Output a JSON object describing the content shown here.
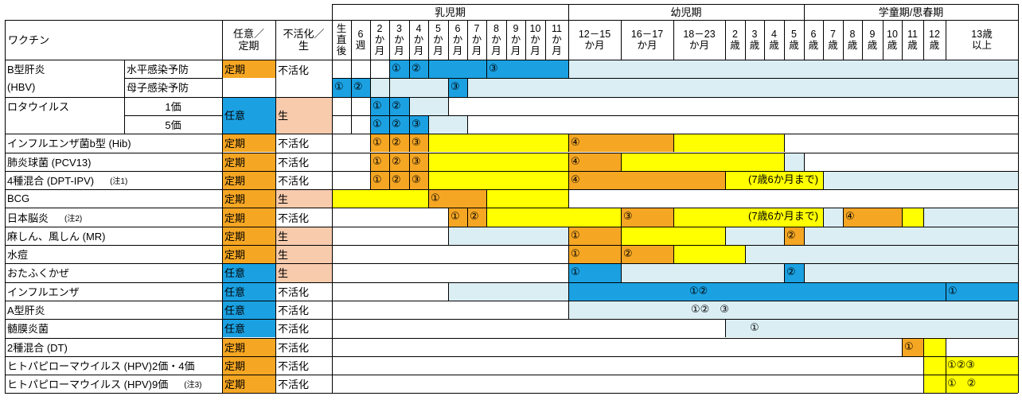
{
  "colors": {
    "orange": "#F5A623",
    "blue": "#1BA1E2",
    "peach": "#F8CBAD",
    "yellow": "#FFFF00",
    "lightblue": "#DAEEF3",
    "darkorange": "#F0A500"
  },
  "header": {
    "vaccine_col": "ワクチン",
    "type_col": "任意／\n定期",
    "kind_col": "不活化／\n生",
    "periods": [
      "乳児期",
      "幼児期",
      "学童期/思春期"
    ],
    "ages": [
      "生\n直\n後",
      "6\n週",
      "2\nか\n月",
      "3\nか\n月",
      "4\nか\n月",
      "5\nか\n月",
      "6\nか\n月",
      "7\nか\n月",
      "8\nか\n月",
      "9\nか\n月",
      "10\nか\n月",
      "11\nか\n月",
      "12－15\nか月",
      "16－17\nか月",
      "18－23\nか月",
      "2\n歳",
      "3\n歳",
      "4\n歳",
      "5\n歳",
      "6\n歳",
      "7\n歳",
      "8\n歳",
      "9\n歳",
      "10\n歳",
      "11\n歳",
      "12\n歳",
      "13歳\n以上"
    ]
  },
  "rows": [
    {
      "name": "B型肝炎",
      "sub": "水平感染予防",
      "type": "定期",
      "kind": "不活化"
    },
    {
      "name": "(HBV)",
      "sub": "母子感染予防",
      "type": "",
      "kind": ""
    },
    {
      "name": "ロタウイルス",
      "sub": "1価",
      "type": "任意",
      "kind": "生"
    },
    {
      "name": "",
      "sub": "5価",
      "type": "",
      "kind": ""
    },
    {
      "name": "インフルエンザ菌b型 (Hib)",
      "sub": "",
      "type": "定期",
      "kind": "不活化"
    },
    {
      "name": "肺炎球菌 (PCV13)",
      "sub": "",
      "type": "定期",
      "kind": "不活化"
    },
    {
      "name": "4種混合 (DPT-IPV)",
      "note": "(注1)",
      "sub": "",
      "type": "定期",
      "kind": "不活化"
    },
    {
      "name": "BCG",
      "sub": "",
      "type": "定期",
      "kind": "生"
    },
    {
      "name": "日本脳炎",
      "note": "(注2)",
      "sub": "",
      "type": "定期",
      "kind": "不活化"
    },
    {
      "name": "麻しん、風しん (MR)",
      "sub": "",
      "type": "定期",
      "kind": "生"
    },
    {
      "name": "水痘",
      "sub": "",
      "type": "定期",
      "kind": "生"
    },
    {
      "name": "おたふくかぜ",
      "sub": "",
      "type": "任意",
      "kind": "生"
    },
    {
      "name": "インフルエンザ",
      "sub": "",
      "type": "任意",
      "kind": "不活化"
    },
    {
      "name": "A型肝炎",
      "sub": "",
      "type": "任意",
      "kind": "不活化"
    },
    {
      "name": "髄膜炎菌",
      "sub": "",
      "type": "任意",
      "kind": "不活化"
    },
    {
      "name": "2種混合 (DT)",
      "sub": "",
      "type": "定期",
      "kind": "不活化"
    },
    {
      "name": "ヒトパピローマウイルス (HPV)2価・4価",
      "sub": "",
      "type": "定期",
      "kind": "不活化"
    },
    {
      "name": "ヒトパピローマウイルス (HPV)9価",
      "note": "(注3)",
      "sub": "",
      "type": "定期",
      "kind": "不活化"
    }
  ],
  "schedule": [
    {
      "row": 0,
      "bars": [
        [
          3,
          12,
          "blue"
        ],
        [
          12,
          27,
          "lightblue"
        ]
      ],
      "doses": [
        [
          3,
          "①"
        ],
        [
          4,
          "②"
        ],
        [
          8,
          "③"
        ]
      ]
    },
    {
      "row": 1,
      "bars": [
        [
          0,
          2,
          "blue"
        ],
        [
          2,
          6,
          "lightblue"
        ],
        [
          6,
          7,
          "blue"
        ],
        [
          7,
          27,
          "lightblue"
        ]
      ],
      "doses": [
        [
          0,
          "①"
        ],
        [
          1,
          "②"
        ],
        [
          6,
          "③"
        ]
      ]
    },
    {
      "row": 2,
      "bars": [
        [
          2,
          4,
          "blue"
        ],
        [
          4,
          6,
          "lightblue"
        ]
      ],
      "doses": [
        [
          2,
          "①"
        ],
        [
          3,
          "②"
        ]
      ]
    },
    {
      "row": 3,
      "bars": [
        [
          2,
          5,
          "blue"
        ],
        [
          5,
          7,
          "lightblue"
        ]
      ],
      "doses": [
        [
          2,
          "①"
        ],
        [
          3,
          "②"
        ],
        [
          4,
          "③"
        ]
      ]
    },
    {
      "row": 4,
      "bars": [
        [
          2,
          5,
          "orange"
        ],
        [
          5,
          12,
          "yellow"
        ],
        [
          12,
          14,
          "orange"
        ],
        [
          14,
          18,
          "yellow"
        ]
      ],
      "doses": [
        [
          2,
          "①"
        ],
        [
          3,
          "②"
        ],
        [
          4,
          "③"
        ],
        [
          12,
          "④"
        ]
      ]
    },
    {
      "row": 5,
      "bars": [
        [
          2,
          5,
          "orange"
        ],
        [
          5,
          12,
          "yellow"
        ],
        [
          12,
          13,
          "orange"
        ],
        [
          13,
          18,
          "yellow"
        ],
        [
          18,
          19,
          "lightblue"
        ]
      ],
      "doses": [
        [
          2,
          "①"
        ],
        [
          3,
          "②"
        ],
        [
          4,
          "③"
        ],
        [
          12,
          "④"
        ]
      ]
    },
    {
      "row": 6,
      "bars": [
        [
          2,
          5,
          "orange"
        ],
        [
          5,
          12,
          "yellow"
        ],
        [
          12,
          15,
          "orange"
        ],
        [
          15,
          20,
          "yellow"
        ],
        [
          20,
          27,
          "lightblue"
        ]
      ],
      "doses": [
        [
          2,
          "①"
        ],
        [
          3,
          "②"
        ],
        [
          4,
          "③"
        ],
        [
          12,
          "④"
        ]
      ],
      "note": "(7歳6か月まで)"
    },
    {
      "row": 7,
      "bars": [
        [
          0,
          5,
          "yellow"
        ],
        [
          5,
          8,
          "orange"
        ],
        [
          8,
          12,
          "yellow"
        ]
      ],
      "doses": [
        [
          5,
          "①"
        ]
      ]
    },
    {
      "row": 8,
      "bars": [
        [
          6,
          8,
          "orange"
        ],
        [
          8,
          13,
          "yellow"
        ],
        [
          13,
          14,
          "orange"
        ],
        [
          14,
          20,
          "yellow"
        ],
        [
          20,
          21,
          "lightblue"
        ],
        [
          21,
          24,
          "orange"
        ],
        [
          24,
          25,
          "yellow"
        ],
        [
          25,
          27,
          "lightblue"
        ]
      ],
      "doses": [
        [
          6,
          "①"
        ],
        [
          7,
          "②"
        ],
        [
          13,
          "③"
        ],
        [
          21,
          "④"
        ]
      ],
      "note": "(7歳6か月まで)"
    },
    {
      "row": 9,
      "bars": [
        [
          6,
          12,
          "lightblue"
        ],
        [
          12,
          13,
          "orange"
        ],
        [
          13,
          15,
          "yellow"
        ],
        [
          15,
          18,
          "lightblue"
        ],
        [
          18,
          19,
          "orange"
        ],
        [
          19,
          27,
          "lightblue"
        ]
      ],
      "doses": [
        [
          12,
          "①"
        ],
        [
          18,
          "②"
        ]
      ]
    },
    {
      "row": 10,
      "bars": [
        [
          12,
          13,
          "orange"
        ],
        [
          13,
          14,
          "orange"
        ],
        [
          14,
          16,
          "yellow"
        ],
        [
          16,
          27,
          "lightblue"
        ]
      ],
      "doses": [
        [
          12,
          "①"
        ],
        [
          13,
          "②"
        ]
      ]
    },
    {
      "row": 11,
      "bars": [
        [
          12,
          13,
          "blue"
        ],
        [
          13,
          18,
          "lightblue"
        ],
        [
          18,
          19,
          "blue"
        ],
        [
          19,
          27,
          "lightblue"
        ]
      ],
      "doses": [
        [
          12,
          "①"
        ],
        [
          18,
          "②"
        ]
      ]
    },
    {
      "row": 12,
      "bars": [
        [
          6,
          12,
          "lightblue"
        ],
        [
          12,
          26,
          "blue"
        ],
        [
          26,
          27,
          "blue"
        ]
      ],
      "doses": [
        [
          26,
          "①"
        ]
      ],
      "center_text": "①②"
    },
    {
      "row": 13,
      "bars": [
        [
          12,
          27,
          "lightblue"
        ]
      ],
      "doses": [],
      "center_text": "①②　③"
    },
    {
      "row": 14,
      "bars": [
        [
          15,
          27,
          "lightblue"
        ]
      ],
      "doses": [],
      "center_text": "①"
    },
    {
      "row": 15,
      "bars": [
        [
          24,
          25,
          "orange"
        ],
        [
          25,
          26,
          "yellow"
        ]
      ],
      "doses": [
        [
          24,
          "①"
        ]
      ]
    },
    {
      "row": 16,
      "bars": [
        [
          25,
          26,
          "yellow"
        ],
        [
          26,
          27,
          "yellow"
        ]
      ],
      "doses": [],
      "right_text": "①②③"
    },
    {
      "row": 17,
      "bars": [
        [
          25,
          26,
          "yellow"
        ],
        [
          26,
          27,
          "yellow"
        ]
      ],
      "doses": [],
      "right_text": "①　②"
    }
  ]
}
